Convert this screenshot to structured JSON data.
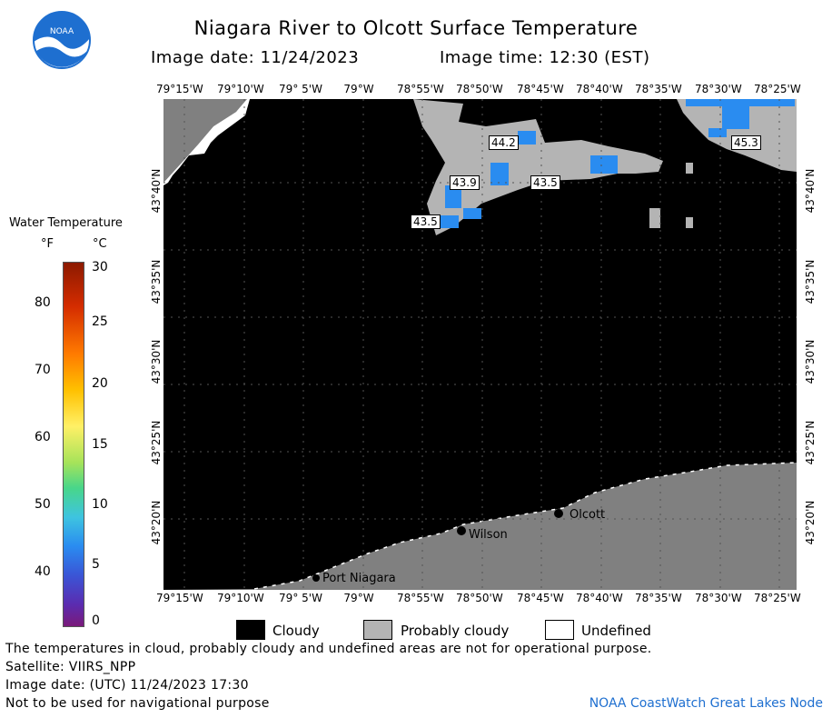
{
  "header": {
    "title": "Niagara River to Olcott Surface Temperature",
    "image_date": "Image date: 11/24/2023",
    "image_time": "Image time: 12:30 (EST)",
    "logo_text": "NOAA"
  },
  "colorbar": {
    "title": "Water Temperature",
    "unit_f": "°F",
    "unit_c": "°C",
    "f_ticks": [
      "80",
      "70",
      "60",
      "50",
      "40"
    ],
    "c_ticks": [
      "30",
      "25",
      "20",
      "15",
      "10",
      "5",
      "0"
    ]
  },
  "map": {
    "lon_labels": [
      "79°15'W",
      "79°10'W",
      "79° 5'W",
      "79°W",
      "78°55'W",
      "78°50'W",
      "78°45'W",
      "78°40'W",
      "78°35'W",
      "78°30'W",
      "78°25'W"
    ],
    "lat_labels": [
      "43°40'N",
      "43°35'N",
      "43°30'N",
      "43°25'N",
      "43°20'N"
    ],
    "temp_labels": [
      "44.2",
      "43.9",
      "43.5",
      "43.5",
      "45.3"
    ],
    "places": [
      "Olcott",
      "Wilson",
      "Port Niagara"
    ]
  },
  "legend": {
    "cloudy": "Cloudy",
    "probably_cloudy": "Probably cloudy",
    "undefined": "Undefined",
    "colors": {
      "cloudy": "#000000",
      "probably_cloudy": "#b4b4b4",
      "undefined": "#ffffff",
      "land": "#808080",
      "warm": "#2a8cf0"
    }
  },
  "footer": {
    "disclaimer": "The temperatures in cloud, probably cloudy and undefined areas are not for operational purpose.",
    "satellite": "Satellite: VIIRS_NPP",
    "utc_date": "Image date: (UTC) 11/24/2023  17:30",
    "nav_warning": "Not to be used for navigational purpose",
    "credit": "NOAA CoastWatch Great Lakes Node"
  }
}
